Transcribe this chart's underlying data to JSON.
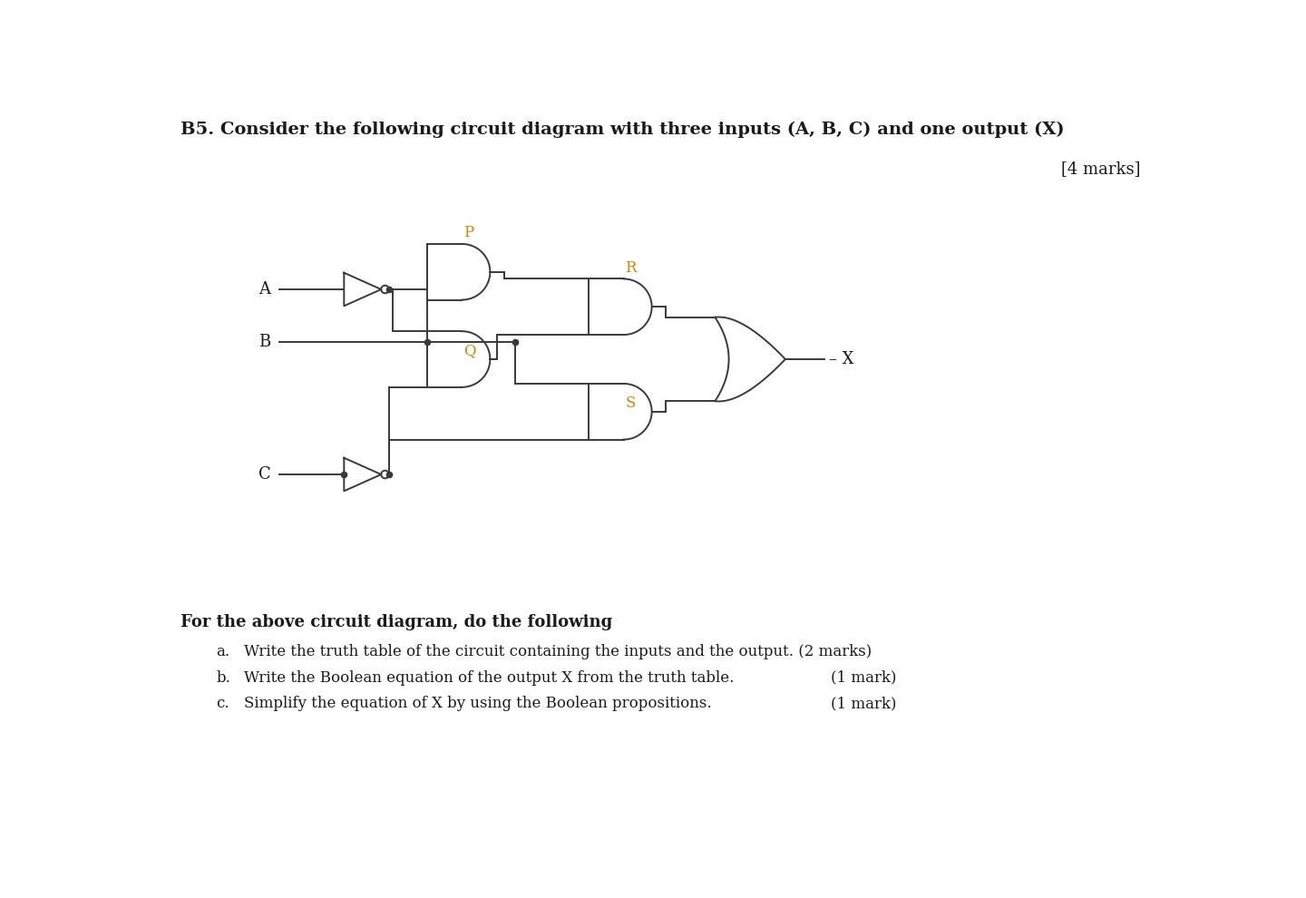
{
  "title": "B5. Consider the following circuit diagram with three inputs (A, B, C) and one output (X)",
  "marks": "[4 marks]",
  "subtitle": "For the above circuit diagram, do the following",
  "items": [
    "Write the truth table of the circuit containing the inputs and the output. (2 marks)",
    "Write the Boolean equation of the output X from the truth table.",
    "Simplify the equation of X by using the Boolean propositions."
  ],
  "item_marks": [
    "",
    "(1 mark)",
    "(1 mark)"
  ],
  "item_labels": [
    "a.",
    "b.",
    "c."
  ],
  "bg_color": "#ffffff",
  "line_color": "#3a3a3a",
  "label_color_orange": "#cc8800",
  "label_color_black": "#1a1a1a",
  "title_fontsize": 14,
  "marks_fontsize": 13,
  "subtitle_fontsize": 13,
  "item_fontsize": 12
}
